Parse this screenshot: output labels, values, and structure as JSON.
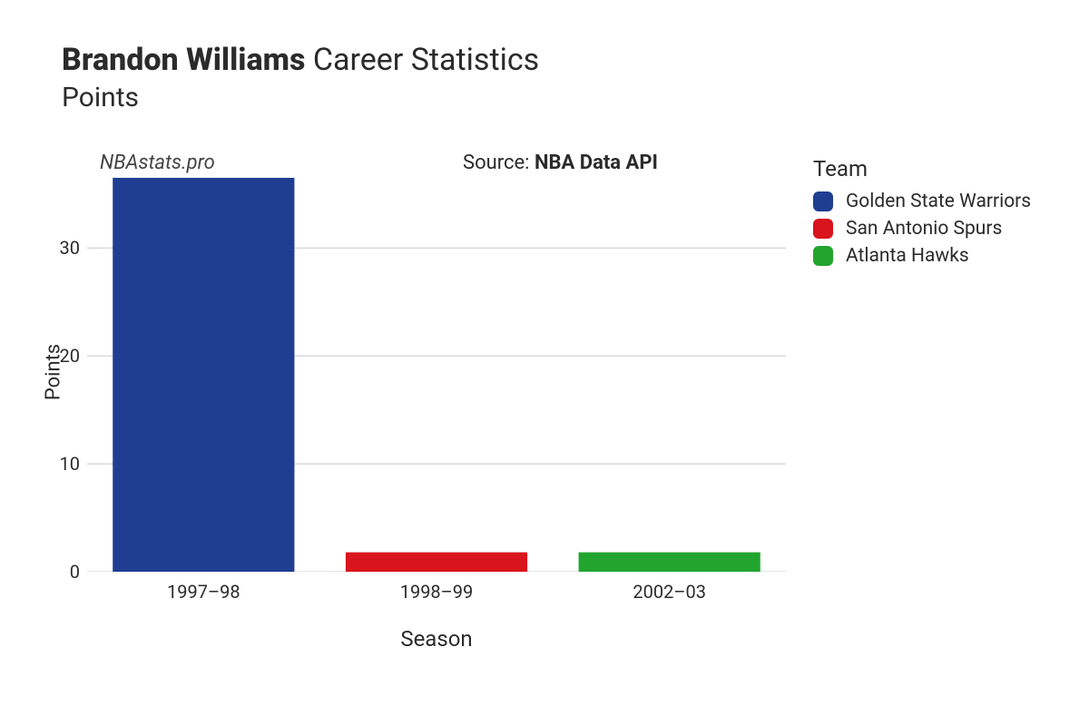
{
  "title": {
    "player_name": "Brandon Williams",
    "suffix": "Career Statistics",
    "subtitle": "Points"
  },
  "watermark": "NBAstats.pro",
  "source": {
    "prefix": "Source: ",
    "name": "NBA Data API"
  },
  "chart": {
    "type": "bar",
    "x_label": "Season",
    "y_label": "Points",
    "ylim": [
      0,
      37
    ],
    "y_ticks": [
      0,
      10,
      20,
      30
    ],
    "background_color": "#ffffff",
    "grid_color": "#c8c8c8",
    "grid_width": 1,
    "categories": [
      "1997–98",
      "1998–99",
      "2002–03"
    ],
    "bars": [
      {
        "season": "1997–98",
        "value": 36.5,
        "color": "#1f3e92",
        "team": "Golden State Warriors"
      },
      {
        "season": "1998–99",
        "value": 1.8,
        "color": "#d8141c",
        "team": "San Antonio Spurs"
      },
      {
        "season": "2002–03",
        "value": 1.8,
        "color": "#22a52e",
        "team": "Atlanta Hawks"
      }
    ],
    "bar_width_ratio": 0.78,
    "tick_fontsize": 20,
    "axis_label_fontsize": 23
  },
  "legend": {
    "title": "Team",
    "items": [
      {
        "label": "Golden State Warriors",
        "color": "#1f3e92"
      },
      {
        "label": "San Antonio Spurs",
        "color": "#d8141c"
      },
      {
        "label": "Atlanta Hawks",
        "color": "#22a52e"
      }
    ]
  }
}
